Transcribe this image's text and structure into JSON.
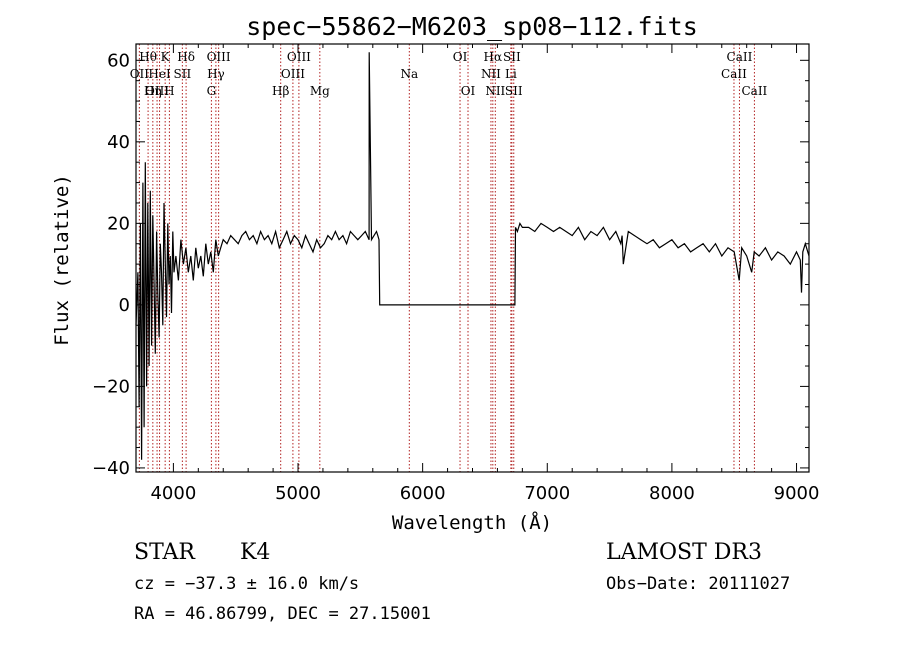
{
  "chart_data": {
    "type": "line",
    "title": "spec−55862−M6203_sp08−112.fits",
    "xlabel": "Wavelength (Å)",
    "ylabel": "Flux (relative)",
    "xlim": [
      3700,
      9100
    ],
    "ylim": [
      -41,
      64
    ],
    "xticks": [
      4000,
      5000,
      6000,
      7000,
      8000,
      9000
    ],
    "xtick_labels": [
      "4000",
      "5000",
      "6000",
      "7000",
      "8000",
      "9000"
    ],
    "yticks": [
      -40,
      -20,
      0,
      20,
      40,
      60
    ],
    "ytick_labels": [
      "−40",
      "−20",
      "0",
      "20",
      "40",
      "60"
    ],
    "grid": false,
    "series": [
      {
        "name": "flux",
        "color": "#000000",
        "x": [
          3700,
          3715,
          3725,
          3735,
          3745,
          3755,
          3765,
          3775,
          3785,
          3795,
          3805,
          3815,
          3825,
          3835,
          3845,
          3855,
          3865,
          3875,
          3885,
          3895,
          3905,
          3915,
          3925,
          3935,
          3945,
          3955,
          3965,
          3975,
          3985,
          3995,
          4005,
          4020,
          4040,
          4060,
          4080,
          4100,
          4120,
          4140,
          4160,
          4180,
          4200,
          4220,
          4240,
          4260,
          4280,
          4300,
          4320,
          4340,
          4360,
          4380,
          4400,
          4430,
          4460,
          4490,
          4520,
          4550,
          4580,
          4610,
          4640,
          4670,
          4700,
          4730,
          4760,
          4790,
          4820,
          4850,
          4880,
          4910,
          4940,
          4970,
          5000,
          5030,
          5060,
          5090,
          5120,
          5150,
          5180,
          5210,
          5240,
          5270,
          5300,
          5330,
          5360,
          5390,
          5420,
          5450,
          5480,
          5510,
          5540,
          5570,
          5571,
          5590,
          5610,
          5630,
          5640,
          5650,
          5655,
          5700,
          6000,
          6300,
          6600,
          6740,
          6745,
          6760,
          6780,
          6800,
          6850,
          6900,
          6950,
          7000,
          7050,
          7100,
          7150,
          7200,
          7250,
          7300,
          7350,
          7400,
          7450,
          7500,
          7550,
          7590,
          7600,
          7610,
          7650,
          7700,
          7750,
          7800,
          7850,
          7900,
          7950,
          8000,
          8050,
          8100,
          8150,
          8200,
          8250,
          8300,
          8350,
          8400,
          8450,
          8500,
          8540,
          8560,
          8600,
          8640,
          8660,
          8700,
          8750,
          8800,
          8850,
          8900,
          8950,
          9000,
          9030,
          9040,
          9050,
          9070,
          9100
        ],
        "y": [
          -5,
          8,
          -25,
          20,
          -38,
          30,
          -30,
          35,
          -20,
          25,
          -15,
          28,
          -10,
          22,
          5,
          -12,
          18,
          3,
          -8,
          15,
          8,
          -5,
          25,
          10,
          -3,
          20,
          5,
          12,
          -2,
          18,
          8,
          12,
          6,
          16,
          10,
          14,
          8,
          12,
          6,
          14,
          9,
          12,
          7,
          15,
          10,
          13,
          8,
          16,
          12,
          14,
          16,
          15,
          17,
          16,
          15,
          17,
          18,
          16,
          17,
          15,
          18,
          16,
          17,
          15,
          18,
          14,
          16,
          18,
          15,
          17,
          16,
          14,
          17,
          15,
          13,
          16,
          14,
          15,
          17,
          16,
          18,
          16,
          17,
          15,
          18,
          17,
          16,
          17,
          18,
          16,
          62,
          16,
          17,
          18,
          17,
          16,
          0,
          0,
          0,
          0,
          0,
          0,
          19,
          18,
          20,
          19,
          19,
          18,
          20,
          19,
          18,
          19,
          18,
          17,
          19,
          16,
          18,
          17,
          19,
          16,
          18,
          15,
          17,
          10,
          18,
          17,
          16,
          15,
          16,
          14,
          15,
          16,
          14,
          15,
          13,
          14,
          15,
          13,
          15,
          12,
          14,
          13,
          6,
          14,
          12,
          8,
          13,
          12,
          14,
          11,
          13,
          12,
          10,
          13,
          11,
          3,
          13,
          15,
          12
        ]
      }
    ],
    "spectral_lines": [
      {
        "label": "Hθ",
        "x": 3797,
        "row": 1
      },
      {
        "label": "OII",
        "x": 3727,
        "row": 2
      },
      {
        "label": "OIII",
        "x": 3869,
        "row": 3
      },
      {
        "label": "Hη",
        "x": 3835,
        "row": 3
      },
      {
        "label": "HeI",
        "x": 3889,
        "row": 2
      },
      {
        "label": "K",
        "x": 3934,
        "row": 1
      },
      {
        "label": "H",
        "x": 3968,
        "row": 3
      },
      {
        "label": "SII",
        "x": 4072,
        "row": 2
      },
      {
        "label": "Hδ",
        "x": 4102,
        "row": 1
      },
      {
        "label": "OIII",
        "x": 4363,
        "row": 1
      },
      {
        "label": "Hγ",
        "x": 4341,
        "row": 2
      },
      {
        "label": "G",
        "x": 4305,
        "row": 3
      },
      {
        "label": "Hβ",
        "x": 4861,
        "row": 3
      },
      {
        "label": "OIII",
        "x": 5007,
        "row": 1
      },
      {
        "label": "OIII",
        "x": 4959,
        "row": 2
      },
      {
        "label": "Mg",
        "x": 5175,
        "row": 3
      },
      {
        "label": "Na",
        "x": 5893,
        "row": 2
      },
      {
        "label": "OI",
        "x": 6300,
        "row": 1
      },
      {
        "label": "OI",
        "x": 6364,
        "row": 3
      },
      {
        "label": "Hα",
        "x": 6563,
        "row": 1
      },
      {
        "label": "NII",
        "x": 6548,
        "row": 2
      },
      {
        "label": "NII",
        "x": 6583,
        "row": 3
      },
      {
        "label": "SII",
        "x": 6716,
        "row": 1
      },
      {
        "label": "Li",
        "x": 6708,
        "row": 2
      },
      {
        "label": "SII",
        "x": 6731,
        "row": 3
      },
      {
        "label": "CaII",
        "x": 8542,
        "row": 1
      },
      {
        "label": "CaII",
        "x": 8498,
        "row": 2
      },
      {
        "label": "CaII",
        "x": 8662,
        "row": 3
      }
    ],
    "line_color": "#b22222"
  },
  "info": {
    "class_label": "STAR",
    "subclass": "K4",
    "survey": "LAMOST DR3",
    "cz": "cz = −37.3 ± 16.0 km/s",
    "obs_date": "Obs−Date: 20111027",
    "coords": "RA =  46.86799, DEC =  27.15001"
  }
}
